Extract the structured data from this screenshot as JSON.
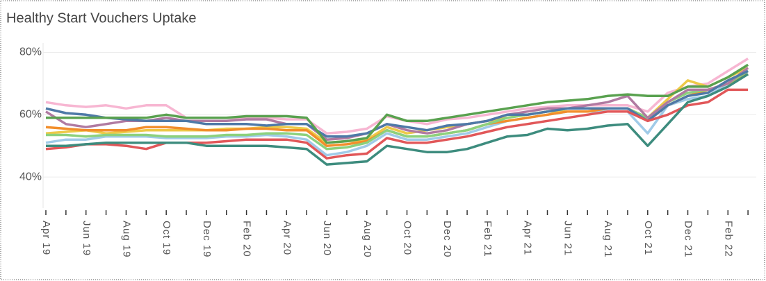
{
  "chart_data": {
    "type": "line",
    "title": "Healthy Start Vouchers Uptake",
    "categories": [
      "Apr 19",
      null,
      "Jun 19",
      null,
      "Aug 19",
      null,
      "Oct 19",
      null,
      "Dec 19",
      null,
      "Feb 20",
      null,
      "Apr 20",
      null,
      "Jun 20",
      null,
      "Aug 20",
      null,
      "Oct 20",
      null,
      "Dec 20",
      null,
      "Feb 21",
      null,
      "Apr 21",
      null,
      "Jun 21",
      null,
      "Aug 21",
      null,
      "Oct 21",
      null,
      "Dec 21",
      null,
      "Feb 22",
      null
    ],
    "ylim": [
      30,
      83
    ],
    "yticks": [
      {
        "value": 40,
        "label": "40%"
      },
      {
        "value": 60,
        "label": "60%"
      },
      {
        "value": 80,
        "label": "80%"
      }
    ],
    "grid": true,
    "series": [
      {
        "color": "#f7b6d2",
        "values": [
          64,
          63,
          62.5,
          63,
          62,
          63,
          63,
          59,
          59,
          59,
          59,
          59,
          58.5,
          58.5,
          54,
          54.5,
          55.5,
          59.5,
          58,
          57,
          58.5,
          59,
          60,
          61,
          62,
          62.5,
          63,
          63,
          63,
          63,
          61,
          67,
          69,
          70,
          74,
          78
        ]
      },
      {
        "color": "#a0cbe8",
        "values": [
          51,
          52,
          52,
          53,
          53,
          53,
          52.5,
          52.5,
          52.5,
          53,
          53,
          53.5,
          53,
          52,
          47,
          48,
          50,
          54,
          52,
          52,
          53,
          54,
          56,
          58,
          59,
          60,
          61,
          61,
          61,
          61,
          54,
          63,
          65,
          66,
          70,
          73
        ]
      },
      {
        "color": "#edc948",
        "values": [
          54,
          54.5,
          55,
          54,
          54.5,
          55,
          55,
          55,
          55,
          55.5,
          55.5,
          56,
          56,
          55.5,
          51,
          51.5,
          52,
          56,
          54,
          55,
          56,
          57,
          58,
          59,
          60,
          61,
          61,
          61,
          62,
          62,
          59,
          65,
          71,
          69,
          72,
          75
        ]
      },
      {
        "color": "#f28e2b",
        "values": [
          56,
          55.5,
          55,
          55,
          55,
          56,
          56,
          55.5,
          55,
          55,
          55.5,
          55.5,
          55,
          55,
          50,
          50.5,
          51.5,
          55,
          53,
          53,
          54,
          55,
          57,
          58,
          59,
          60,
          61,
          61,
          62,
          62,
          58,
          63,
          66,
          68,
          70,
          73
        ]
      },
      {
        "color": "#8cd17d",
        "values": [
          53.5,
          53.5,
          53,
          53.5,
          53.5,
          53.5,
          53,
          53,
          53,
          53.5,
          53.5,
          54,
          54,
          53.5,
          49,
          49.5,
          51,
          55,
          53,
          53,
          54,
          55,
          57,
          59,
          60,
          61,
          62,
          62,
          62,
          62,
          59,
          64,
          67,
          68,
          70,
          74
        ]
      },
      {
        "color": "#b07aa1",
        "values": [
          61,
          57,
          56,
          57,
          58,
          58,
          59,
          58,
          58,
          58,
          58.5,
          58.5,
          57,
          57,
          52,
          52.5,
          54,
          57,
          55,
          54,
          55,
          57,
          58,
          60,
          61,
          62,
          62,
          63,
          64,
          66,
          59,
          64,
          68,
          68,
          70,
          75
        ]
      },
      {
        "color": "#4e79a7",
        "values": [
          62,
          60.5,
          60,
          59,
          58.5,
          58,
          58,
          58,
          57,
          57,
          57,
          56.5,
          57,
          57,
          53,
          53,
          54,
          57,
          56,
          55,
          56.5,
          57,
          58,
          60,
          60,
          61,
          62,
          62,
          62,
          62,
          58,
          63,
          66,
          67,
          71,
          74
        ]
      },
      {
        "color": "#59a14f",
        "values": [
          59,
          59,
          59,
          59,
          59,
          59,
          60,
          59,
          59,
          59,
          59.5,
          59.5,
          59.5,
          59,
          51,
          51.5,
          52.5,
          60,
          58,
          58,
          59,
          60,
          61,
          62,
          63,
          64,
          64.5,
          65,
          66,
          66.5,
          66,
          66,
          69,
          69,
          72,
          76
        ]
      },
      {
        "color": "#e15759",
        "values": [
          49,
          49.5,
          50.5,
          50.5,
          50,
          49,
          51,
          51,
          51,
          51.5,
          52,
          52,
          52,
          51,
          46,
          47,
          47.5,
          52.5,
          51,
          51,
          52,
          53,
          54.5,
          56,
          57,
          58,
          59,
          60,
          61,
          61,
          58,
          60,
          63,
          64,
          68,
          68
        ]
      },
      {
        "color": "#3d8c7e",
        "values": [
          50,
          50,
          50.5,
          51,
          51,
          51,
          51,
          51,
          50,
          50,
          50,
          50,
          49.5,
          49,
          44,
          44.5,
          45,
          50,
          49,
          48,
          48,
          49,
          51,
          53,
          53.5,
          55.5,
          55,
          55.5,
          56.5,
          57,
          50,
          57,
          64,
          66,
          69,
          73
        ]
      }
    ]
  }
}
